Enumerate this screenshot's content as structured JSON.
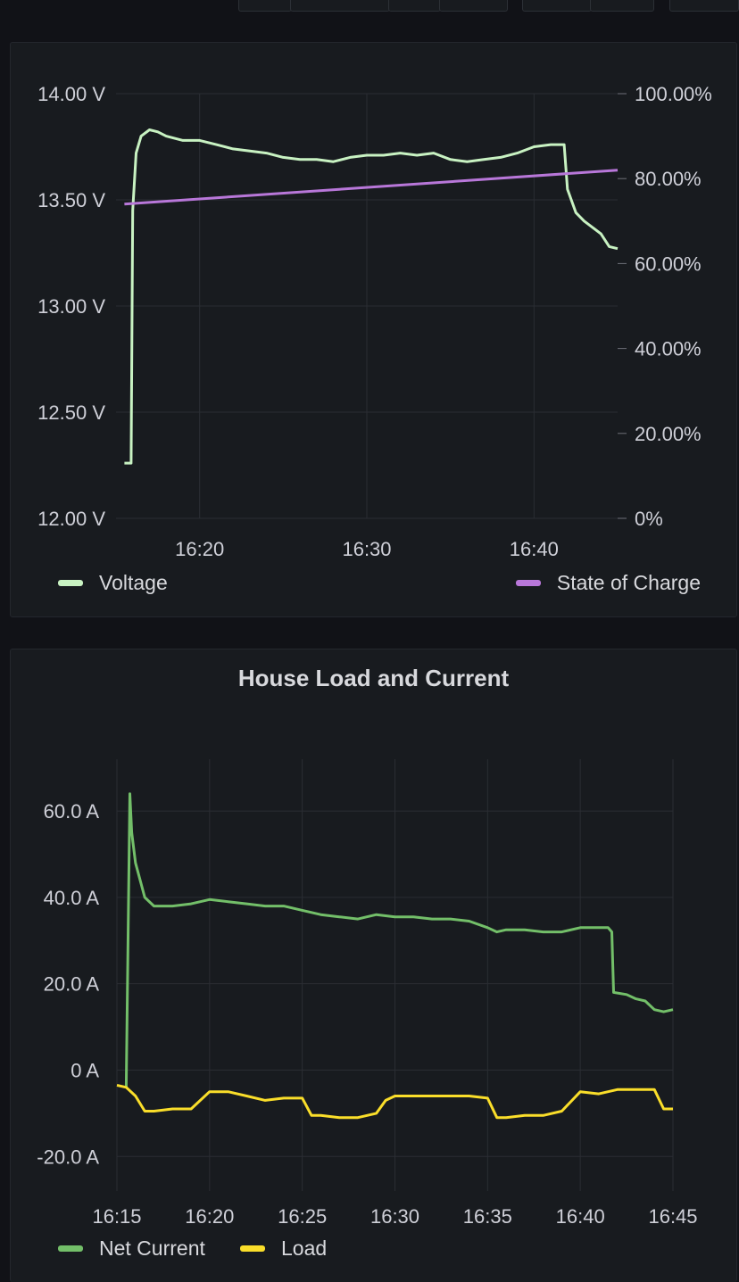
{
  "chart_data": [
    {
      "type": "line",
      "title": "",
      "xlabel": "",
      "ylabel_left": "",
      "ylabel_right": "",
      "x_ticks": [
        "16:20",
        "16:30",
        "16:40"
      ],
      "x_tick_minutes": [
        20,
        30,
        40
      ],
      "xlim_minutes": [
        15,
        45
      ],
      "y_left": {
        "ticks": [
          "12.00 V",
          "12.50 V",
          "13.00 V",
          "13.50 V",
          "14.00 V"
        ],
        "ylim": [
          12.0,
          14.0
        ]
      },
      "y_right": {
        "ticks": [
          "0%",
          "20.00%",
          "40.00%",
          "60.00%",
          "80.00%",
          "100.00%"
        ],
        "ylim": [
          0,
          100
        ]
      },
      "grid": true,
      "legend_placement": "bottom",
      "series": [
        {
          "name": "Voltage",
          "axis": "left",
          "color": "#c8f2c2",
          "x_minutes": [
            15.5,
            15.9,
            16.0,
            16.2,
            16.5,
            17.0,
            17.5,
            18.0,
            19.0,
            20.0,
            21.0,
            22.0,
            23.0,
            24.0,
            25.0,
            26.0,
            27.0,
            28.0,
            29.0,
            30.0,
            31.0,
            32.0,
            33.0,
            34.0,
            35.0,
            36.0,
            37.0,
            38.0,
            39.0,
            40.0,
            41.0,
            41.8,
            42.0,
            42.5,
            43.0,
            43.5,
            44.0,
            44.5,
            45.0
          ],
          "values": [
            12.26,
            12.26,
            13.45,
            13.72,
            13.8,
            13.83,
            13.82,
            13.8,
            13.78,
            13.78,
            13.76,
            13.74,
            13.73,
            13.72,
            13.7,
            13.69,
            13.69,
            13.68,
            13.7,
            13.71,
            13.71,
            13.72,
            13.71,
            13.72,
            13.69,
            13.68,
            13.69,
            13.7,
            13.72,
            13.75,
            13.76,
            13.76,
            13.55,
            13.44,
            13.4,
            13.37,
            13.34,
            13.28,
            13.27
          ]
        },
        {
          "name": "State of Charge",
          "axis": "right",
          "color": "#b877d9",
          "x_minutes": [
            15.5,
            45.0
          ],
          "values": [
            74.0,
            82.0
          ]
        }
      ]
    },
    {
      "type": "line",
      "title": "House Load and Current",
      "xlabel": "",
      "ylabel": "",
      "x_ticks": [
        "16:15",
        "16:20",
        "16:25",
        "16:30",
        "16:35",
        "16:40",
        "16:45"
      ],
      "x_tick_minutes": [
        15,
        20,
        25,
        30,
        35,
        40,
        45
      ],
      "xlim_minutes": [
        15,
        45
      ],
      "y_ticks": [
        "-20.0 A",
        "0 A",
        "20.0 A",
        "40.0 A",
        "60.0 A"
      ],
      "y_tick_values": [
        -20,
        0,
        20,
        40,
        60
      ],
      "ylim": [
        -28,
        72
      ],
      "grid": true,
      "legend_placement": "bottom-left",
      "series": [
        {
          "name": "Net Current",
          "color": "#73bf69",
          "x_minutes": [
            15.5,
            15.7,
            15.8,
            16.0,
            16.5,
            17.0,
            18.0,
            19.0,
            20.0,
            21.0,
            22.0,
            23.0,
            24.0,
            25.0,
            26.0,
            27.0,
            28.0,
            29.0,
            30.0,
            31.0,
            32.0,
            33.0,
            34.0,
            35.0,
            35.5,
            36.0,
            37.0,
            38.0,
            39.0,
            40.0,
            41.0,
            41.5,
            41.7,
            41.8,
            42.5,
            43.0,
            43.5,
            44.0,
            44.5,
            45.0
          ],
          "values": [
            -4,
            64.0,
            55.0,
            48.0,
            40.0,
            38.0,
            38.0,
            38.5,
            39.5,
            39.0,
            38.5,
            38.0,
            38.0,
            37.0,
            36.0,
            35.5,
            35.0,
            36.0,
            35.5,
            35.5,
            35.0,
            35.0,
            34.5,
            33.0,
            32.0,
            32.5,
            32.5,
            32.0,
            32.0,
            33.0,
            33.0,
            33.0,
            32.0,
            18.0,
            17.5,
            16.5,
            16.0,
            14.0,
            13.5,
            14.0
          ]
        },
        {
          "name": "Load",
          "color": "#fade2a",
          "x_minutes": [
            15.0,
            15.5,
            16.0,
            16.5,
            17.0,
            18.0,
            19.0,
            20.0,
            21.0,
            22.0,
            23.0,
            24.0,
            25.0,
            25.5,
            26.0,
            27.0,
            28.0,
            29.0,
            29.5,
            30.0,
            31.0,
            32.0,
            33.0,
            34.0,
            35.0,
            35.5,
            36.0,
            37.0,
            38.0,
            39.0,
            40.0,
            41.0,
            42.0,
            43.0,
            44.0,
            44.5,
            45.0
          ],
          "values": [
            -3.5,
            -4.0,
            -6.0,
            -9.5,
            -9.5,
            -9.0,
            -9.0,
            -5.0,
            -5.0,
            -6.0,
            -7.0,
            -6.5,
            -6.5,
            -10.5,
            -10.5,
            -11.0,
            -11.0,
            -10.0,
            -7.0,
            -6.0,
            -6.0,
            -6.0,
            -6.0,
            -6.0,
            -6.5,
            -11.0,
            -11.0,
            -10.5,
            -10.5,
            -9.5,
            -5.0,
            -5.5,
            -4.5,
            -4.5,
            -4.5,
            -9.0,
            -9.0
          ]
        }
      ]
    }
  ]
}
